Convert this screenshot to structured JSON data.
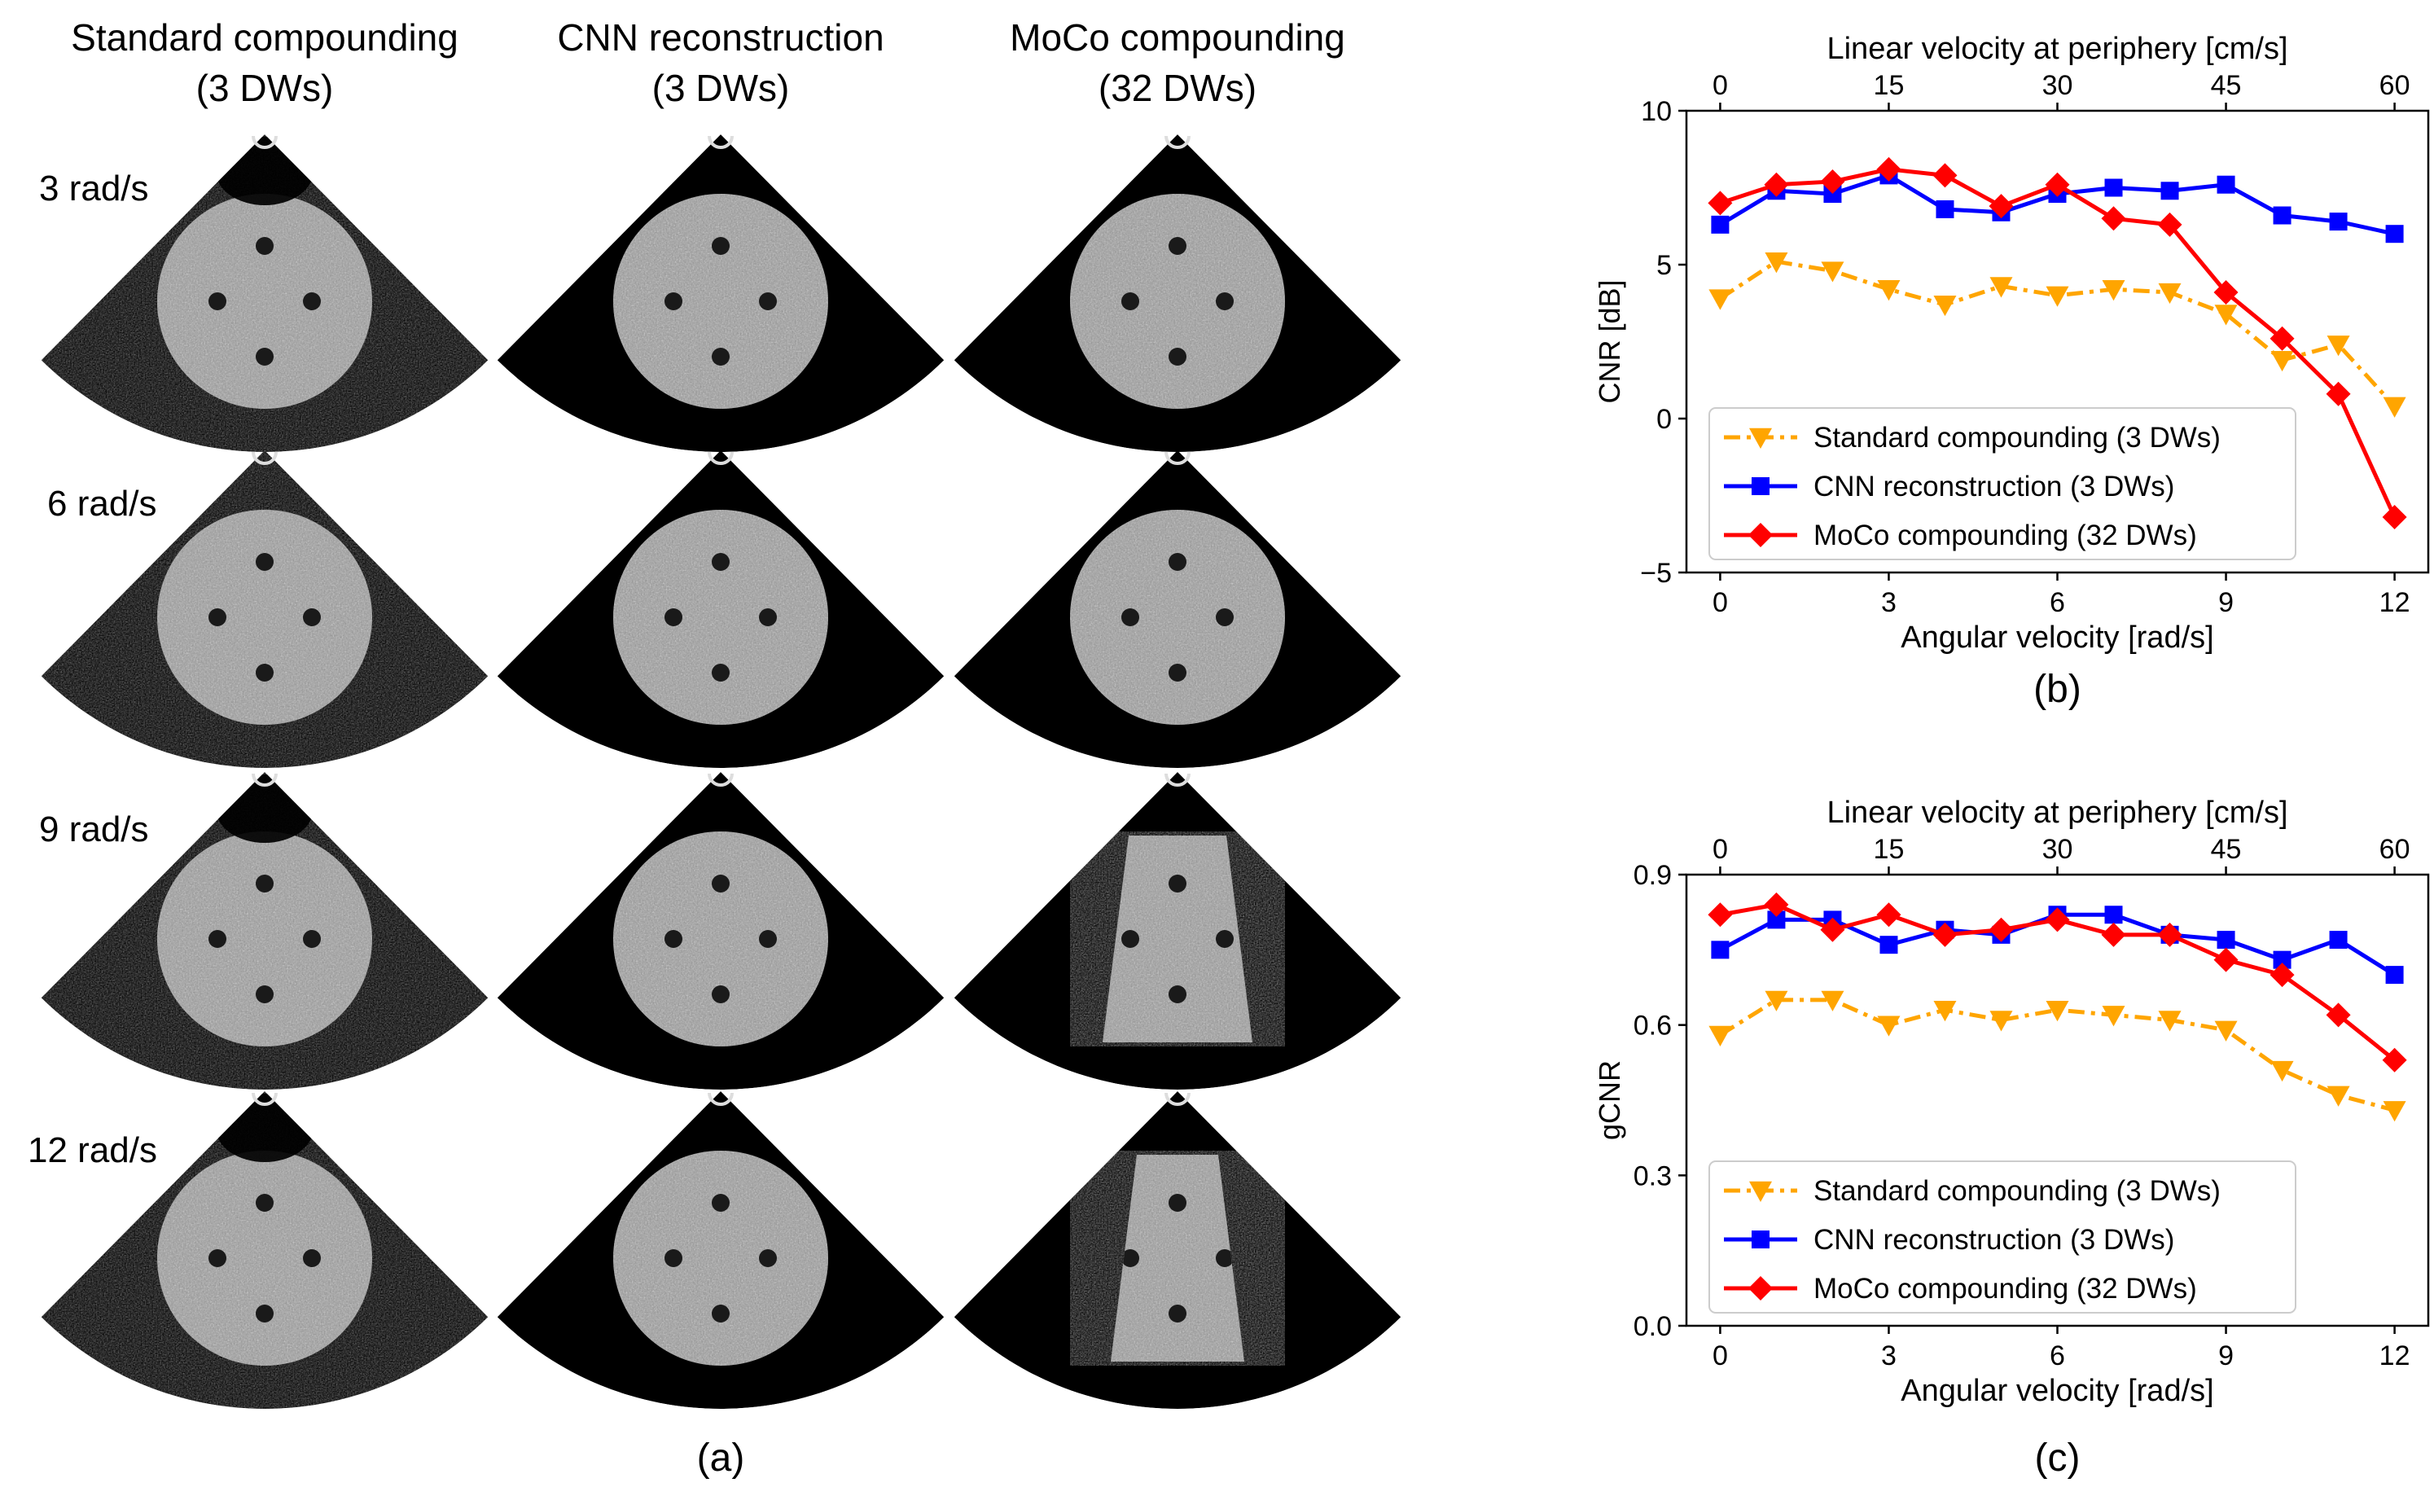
{
  "panel_a": {
    "columns": [
      {
        "line1": "Standard compounding",
        "line2": "(3 DWs)"
      },
      {
        "line1": "CNN reconstruction",
        "line2": "(3 DWs)"
      },
      {
        "line1": "MoCo compounding",
        "line2": "(32 DWs)"
      }
    ],
    "rows": [
      "3 rad/s",
      "6 rad/s",
      "9 rad/s",
      "12 rad/s"
    ],
    "caption": "(a)"
  },
  "colors": {
    "standard": "#FFA500",
    "cnn": "#0000FF",
    "moco": "#FF0000",
    "ultrasound_bg": "#000000",
    "speckle": "#9a9a9a"
  },
  "chart_data": [
    {
      "type": "line",
      "caption": "(b)",
      "xlabel": "Angular velocity [rad/s]",
      "x2label": "Linear velocity at periphery [cm/s]",
      "ylabel": "CNR [dB]",
      "xlim": [
        -0.6,
        12.6
      ],
      "x2lim": [
        -3,
        63
      ],
      "ylim": [
        -5,
        10
      ],
      "xticks": [
        0,
        3,
        6,
        9,
        12
      ],
      "x2ticks": [
        0,
        15,
        30,
        45,
        60
      ],
      "yticks": [
        -5,
        0,
        5,
        10
      ],
      "ytick_labels": [
        "−5",
        "0",
        "5",
        "10"
      ],
      "legend_position": "lower-left",
      "x": [
        0,
        1,
        2,
        3,
        4,
        5,
        6,
        7,
        8,
        9,
        10,
        11,
        12
      ],
      "series": [
        {
          "name": "Standard compounding (3 DWs)",
          "color": "#FFA500",
          "style": "dashdot",
          "marker": "triangle-down",
          "values": [
            3.9,
            5.1,
            4.8,
            4.2,
            3.7,
            4.3,
            4.0,
            4.2,
            4.1,
            3.4,
            1.9,
            2.4,
            0.4
          ]
        },
        {
          "name": "CNN reconstruction (3 DWs)",
          "color": "#0000FF",
          "style": "solid",
          "marker": "square",
          "values": [
            6.3,
            7.4,
            7.3,
            7.9,
            6.8,
            6.7,
            7.3,
            7.5,
            7.4,
            7.6,
            6.6,
            6.4,
            6.0
          ]
        },
        {
          "name": "MoCo compounding (32 DWs)",
          "color": "#FF0000",
          "style": "solid",
          "marker": "diamond",
          "values": [
            7.0,
            7.6,
            7.7,
            8.1,
            7.9,
            6.9,
            7.6,
            6.5,
            6.3,
            4.1,
            2.6,
            0.8,
            -3.2
          ]
        }
      ]
    },
    {
      "type": "line",
      "caption": "(c)",
      "xlabel": "Angular velocity [rad/s]",
      "x2label": "Linear velocity at periphery [cm/s]",
      "ylabel": "gCNR",
      "xlim": [
        -0.6,
        12.6
      ],
      "x2lim": [
        -3,
        63
      ],
      "ylim": [
        0.0,
        0.9
      ],
      "xticks": [
        0,
        3,
        6,
        9,
        12
      ],
      "x2ticks": [
        0,
        15,
        30,
        45,
        60
      ],
      "yticks": [
        0.0,
        0.3,
        0.6,
        0.9
      ],
      "ytick_labels": [
        "0.0",
        "0.3",
        "0.6",
        "0.9"
      ],
      "legend_position": "lower-left",
      "x": [
        0,
        1,
        2,
        3,
        4,
        5,
        6,
        7,
        8,
        9,
        10,
        11,
        12
      ],
      "series": [
        {
          "name": "Standard compounding (3 DWs)",
          "color": "#FFA500",
          "style": "dashdot",
          "marker": "triangle-down",
          "values": [
            0.58,
            0.65,
            0.65,
            0.6,
            0.63,
            0.61,
            0.63,
            0.62,
            0.61,
            0.59,
            0.51,
            0.46,
            0.43
          ]
        },
        {
          "name": "CNN reconstruction (3 DWs)",
          "color": "#0000FF",
          "style": "solid",
          "marker": "square",
          "values": [
            0.75,
            0.81,
            0.81,
            0.76,
            0.79,
            0.78,
            0.82,
            0.82,
            0.78,
            0.77,
            0.73,
            0.77,
            0.7
          ]
        },
        {
          "name": "MoCo compounding (32 DWs)",
          "color": "#FF0000",
          "style": "solid",
          "marker": "diamond",
          "values": [
            0.82,
            0.84,
            0.79,
            0.82,
            0.78,
            0.79,
            0.81,
            0.78,
            0.78,
            0.73,
            0.7,
            0.62,
            0.53
          ]
        }
      ]
    }
  ]
}
